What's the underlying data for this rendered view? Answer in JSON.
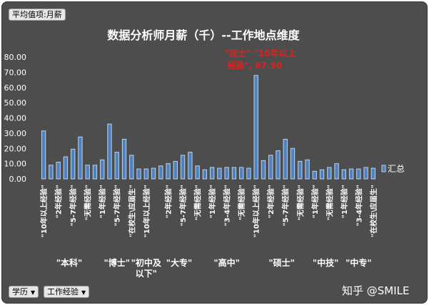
{
  "field_button": {
    "label": "平均值项:月薪"
  },
  "axis_buttons": [
    {
      "label": "学历"
    },
    {
      "label": "工作经验"
    }
  ],
  "watermark": "知乎 @SMILE",
  "colors": {
    "background": "#4d4d4d",
    "bar_fill": "#4f81bd",
    "bar_edge": "#b9d3f0",
    "text": "#ffffff",
    "annotation": "#e0201e"
  },
  "chart_data": {
    "type": "bar",
    "title": "数据分析师月薪（千）--工作地点维度",
    "ylim": [
      0,
      80
    ],
    "yticks": [
      "0.00",
      "10.00",
      "20.00",
      "30.00",
      "40.00",
      "50.00",
      "60.00",
      "70.00",
      "80.00"
    ],
    "grid": false,
    "legend": {
      "label": "汇总",
      "position": "right"
    },
    "annotation": {
      "text": "\"硕士\" \"10年以上经验\", 67.90",
      "line1": "\"硕士\" \"10年以上",
      "line2": "经验\", 67.90"
    },
    "groups": [
      {
        "name": "\"本科\"",
        "name_lines": [
          "\"本科\""
        ]
      },
      {
        "name": "\"博士\"",
        "name_lines": [
          "\"博士\""
        ]
      },
      {
        "name": "初中及以下",
        "name_lines": [
          "\"初中及",
          "以下\""
        ]
      },
      {
        "name": "\"大专\"",
        "name_lines": [
          "\"大专\""
        ]
      },
      {
        "name": "\"高中\"",
        "name_lines": [
          "\"高中\""
        ]
      },
      {
        "name": "\"硕士\"",
        "name_lines": [
          "\"硕士\""
        ]
      },
      {
        "name": "\"中技\"",
        "name_lines": [
          "\"中技\""
        ]
      },
      {
        "name": "\"中专\"",
        "name_lines": [
          "\"中专\""
        ]
      }
    ],
    "bars": [
      {
        "group": 0,
        "label": "\"10年以上经验\"",
        "value": 31.5
      },
      {
        "group": 0,
        "label": "",
        "value": 9.0
      },
      {
        "group": 0,
        "label": "\"2年经验\"",
        "value": 11.0
      },
      {
        "group": 0,
        "label": "",
        "value": 14.5
      },
      {
        "group": 0,
        "label": "\"5-7年经验\"",
        "value": 19.5
      },
      {
        "group": 0,
        "label": "",
        "value": 27.5
      },
      {
        "group": 0,
        "label": "\"无需经验\"",
        "value": 9.0
      },
      {
        "group": 0,
        "label": "",
        "value": 9.0
      },
      {
        "group": 1,
        "label": "\"1年经验\"",
        "value": 12.5
      },
      {
        "group": 1,
        "label": "",
        "value": 36.0
      },
      {
        "group": 1,
        "label": "\"5-7年经验\"",
        "value": 17.5
      },
      {
        "group": 1,
        "label": "",
        "value": 26.0
      },
      {
        "group": 1,
        "label": "\"在校生\\应届生\"",
        "value": 15.5
      },
      {
        "group": 2,
        "label": "",
        "value": 6.5
      },
      {
        "group": 2,
        "label": "\"10年以上经验\"",
        "value": 6.5
      },
      {
        "group": 2,
        "label": "",
        "value": 7.0
      },
      {
        "group": 3,
        "label": "",
        "value": 8.5
      },
      {
        "group": 3,
        "label": "\"2年经验\"",
        "value": 10.0
      },
      {
        "group": 3,
        "label": "",
        "value": 11.5
      },
      {
        "group": 3,
        "label": "\"5-7年经验\"",
        "value": 15.5
      },
      {
        "group": 3,
        "label": "",
        "value": 17.5
      },
      {
        "group": 3,
        "label": "\"无需经验\"",
        "value": 8.5
      },
      {
        "group": 4,
        "label": "",
        "value": 6.0
      },
      {
        "group": 4,
        "label": "\"1年经验\"",
        "value": 7.5
      },
      {
        "group": 4,
        "label": "",
        "value": 7.0
      },
      {
        "group": 4,
        "label": "\"3-4年经验\"",
        "value": 7.5
      },
      {
        "group": 4,
        "label": "",
        "value": 7.5
      },
      {
        "group": 4,
        "label": "\"无需经验\"",
        "value": 7.5
      },
      {
        "group": 4,
        "label": "",
        "value": 7.0
      },
      {
        "group": 5,
        "label": "\"10年以上经验\"",
        "value": 67.9
      },
      {
        "group": 5,
        "label": "",
        "value": 12.0
      },
      {
        "group": 5,
        "label": "\"2年经验\"",
        "value": 15.5
      },
      {
        "group": 5,
        "label": "",
        "value": 18.5
      },
      {
        "group": 5,
        "label": "\"5-7年经验\"",
        "value": 26.0
      },
      {
        "group": 5,
        "label": "",
        "value": 20.0
      },
      {
        "group": 5,
        "label": "\"无需经验\"",
        "value": 11.5
      },
      {
        "group": 5,
        "label": "",
        "value": 12.5
      },
      {
        "group": 6,
        "label": "\"1年经验\"",
        "value": 5.0
      },
      {
        "group": 6,
        "label": "",
        "value": 6.0
      },
      {
        "group": 6,
        "label": "\"无需经验\"",
        "value": 7.5
      },
      {
        "group": 6,
        "label": "",
        "value": 10.0
      },
      {
        "group": 7,
        "label": "\"1年经验\"",
        "value": 6.0
      },
      {
        "group": 7,
        "label": "",
        "value": 6.5
      },
      {
        "group": 7,
        "label": "\"3-4年经验\"",
        "value": 6.5
      },
      {
        "group": 7,
        "label": "",
        "value": 7.5
      },
      {
        "group": 7,
        "label": "\"在校生\\应届生\"",
        "value": 7.0
      }
    ]
  }
}
